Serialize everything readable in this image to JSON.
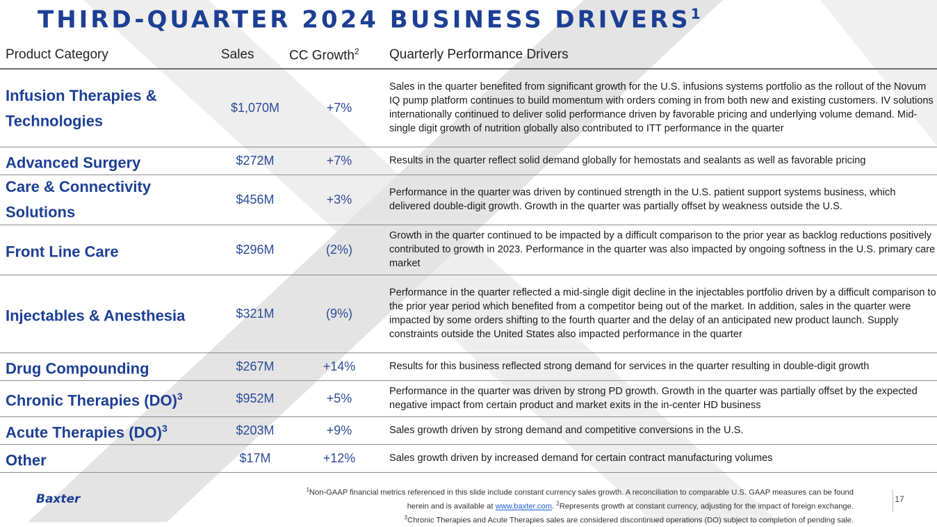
{
  "slide": {
    "title": "THIRD-QUARTER 2024 BUSINESS DRIVERS",
    "title_superscript": "1",
    "page_number": "17",
    "logo_text": "Baxter",
    "accent_color": "#1c3f94"
  },
  "table": {
    "headers": {
      "category": "Product Category",
      "sales": "Sales",
      "growth": "CC Growth",
      "growth_superscript": "2",
      "drivers": "Quarterly Performance Drivers"
    },
    "rows": [
      {
        "category": "Infusion Therapies & Technologies",
        "category_superscript": "",
        "sales": "$1,070M",
        "growth": "+7%",
        "drivers": "Sales in the quarter benefited from significant growth for the U.S. infusions systems portfolio as the rollout of the Novum IQ pump platform continues to build momentum with orders coming in from both new and existing customers. IV solutions internationally continued to deliver solid performance driven by favorable pricing and underlying volume demand. Mid-single digit growth of nutrition globally also contributed to ITT performance in the quarter"
      },
      {
        "category": "Advanced Surgery",
        "category_superscript": "",
        "sales": "$272M",
        "growth": "+7%",
        "drivers": "Results in the quarter reflect solid demand globally for hemostats and sealants as well as favorable pricing"
      },
      {
        "category": "Care & Connectivity Solutions",
        "category_superscript": "",
        "sales": "$456M",
        "growth": "+3%",
        "drivers": "Performance in the quarter was driven by continued strength in the U.S. patient support systems business, which delivered double-digit growth. Growth in the quarter was partially offset by weakness outside the U.S."
      },
      {
        "category": "Front Line Care",
        "category_superscript": "",
        "sales": "$296M",
        "growth": "(2%)",
        "drivers": "Growth in the quarter continued to be impacted by a difficult comparison to the prior year as backlog reductions positively contributed to growth in 2023. Performance in the quarter was also impacted by ongoing softness in the U.S. primary care market"
      },
      {
        "category": "Injectables & Anesthesia",
        "category_superscript": "",
        "sales": "$321M",
        "growth": "(9%)",
        "drivers": "Performance in the quarter reflected a mid-single digit decline in the injectables portfolio driven by a difficult comparison to the prior year period which benefited from a competitor being out of the market. In addition, sales in the quarter were impacted by some orders shifting to the fourth quarter and the delay of an anticipated new product launch. Supply constraints outside the United States also impacted performance in the quarter"
      },
      {
        "category": "Drug Compounding",
        "category_superscript": "",
        "sales": "$267M",
        "growth": "+14%",
        "drivers": "Results for this business reflected strong demand for services in the quarter resulting in double-digit growth"
      },
      {
        "category": "Chronic Therapies (DO)",
        "category_superscript": "3",
        "sales": "$952M",
        "growth": "+5%",
        "drivers": "Performance in the quarter was driven by strong PD growth. Growth in the quarter was partially offset by the expected negative impact from certain product and market exits in the in-center HD business"
      },
      {
        "category": "Acute Therapies (DO)",
        "category_superscript": "3",
        "sales": "$203M",
        "growth": "+9%",
        "drivers": "Sales growth driven by strong demand and competitive conversions in the U.S."
      },
      {
        "category": "Other",
        "category_superscript": "",
        "sales": "$17M",
        "growth": "+12%",
        "drivers": "Sales growth driven by increased demand for certain contract manufacturing volumes"
      }
    ]
  },
  "footnotes": {
    "note1_marker": "1",
    "note1_text": "Non-GAAP financial metrics referenced in this slide include constant currency sales growth. A reconciliation to comparable U.S. GAAP measures can be found herein and is available at",
    "note1_link": "www.baxter.com",
    "note1_end": ".",
    "note2_marker": "2",
    "note2_text": "Represents growth at constant currency, adjusting for the impact of foreign exchange.",
    "note3_marker": "3",
    "note3_text": "Chronic Therapies and Acute Therapies sales are considered discontinued operations (DO) subject to completion of pending sale."
  }
}
